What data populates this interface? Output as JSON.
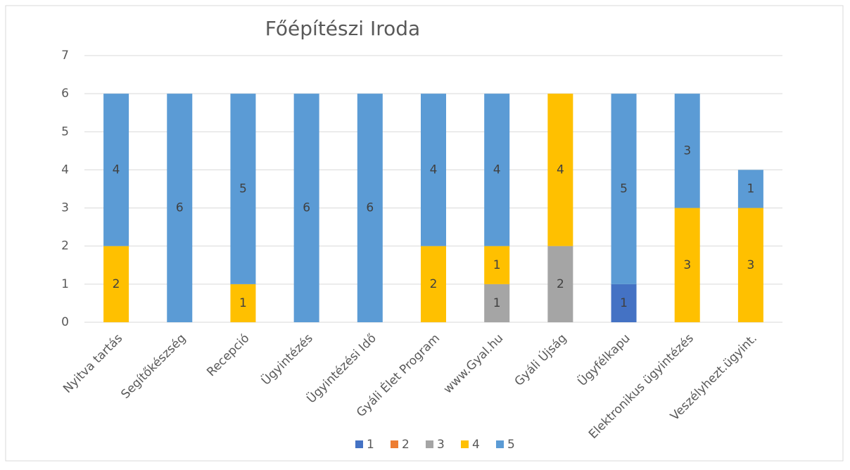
{
  "chart_data": {
    "type": "stacked_bar",
    "title": "Főépítészi Iroda",
    "categories": [
      "Nyitva tartás",
      "Segítőkészség",
      "Recepció",
      "Ügyintézés",
      "Ügyintézési Idő",
      "Gyáli Élet Program",
      "www.Gyal.hu",
      "Gyáli Újság",
      "Ügyfélkapu",
      "Elektronikus ügyintézés",
      "Veszélyhezt.ügyint."
    ],
    "series": [
      {
        "name": "1",
        "color": "#4472c4",
        "values": [
          null,
          null,
          null,
          null,
          null,
          null,
          null,
          null,
          1,
          null,
          null
        ]
      },
      {
        "name": "2",
        "color": "#ed7d31",
        "values": [
          null,
          null,
          null,
          null,
          null,
          null,
          null,
          null,
          null,
          null,
          null
        ]
      },
      {
        "name": "3",
        "color": "#a5a5a5",
        "values": [
          null,
          null,
          null,
          null,
          null,
          null,
          1,
          2,
          null,
          null,
          null
        ]
      },
      {
        "name": "4",
        "color": "#ffc000",
        "values": [
          2,
          null,
          1,
          null,
          null,
          2,
          1,
          4,
          null,
          3,
          3
        ]
      },
      {
        "name": "5",
        "color": "#5b9bd5",
        "values": [
          4,
          6,
          5,
          6,
          6,
          4,
          4,
          null,
          5,
          3,
          1
        ]
      }
    ],
    "ylim": [
      0,
      7
    ],
    "yticks": [
      0,
      1,
      2,
      3,
      4,
      5,
      6,
      7
    ],
    "grid": true,
    "legend": "bottom"
  }
}
